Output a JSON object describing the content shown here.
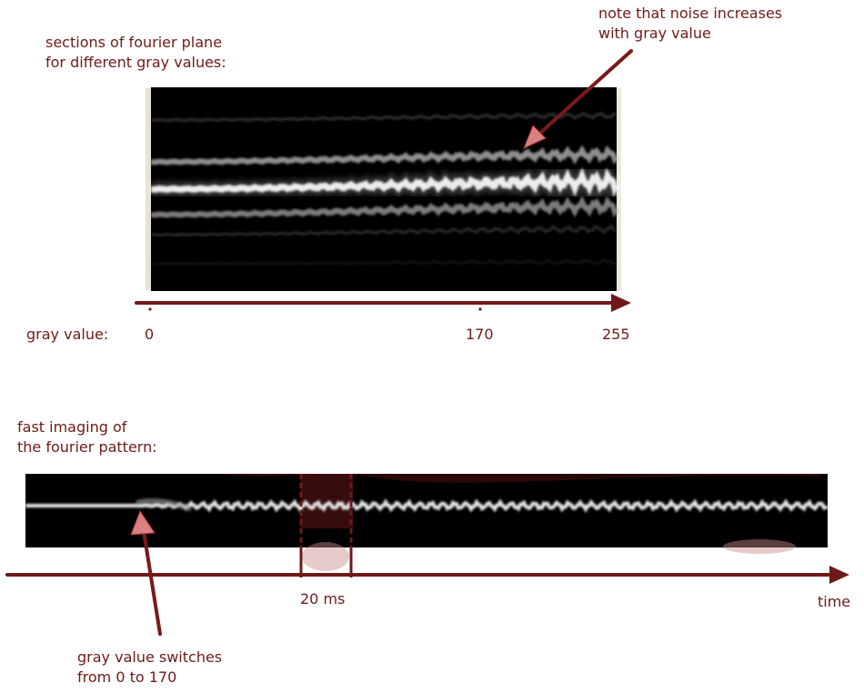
{
  "top_panel": {
    "title_lines": [
      "sections of fourier plane",
      "for different gray values:"
    ],
    "annotation_lines": [
      "note that noise increases",
      "with gray value"
    ],
    "axis_label": "gray value:",
    "ticks": [
      "0",
      "170",
      "255"
    ]
  },
  "bottom_panel": {
    "title_lines": [
      "fast imaging of",
      "the fourier pattern:"
    ],
    "interval_label": "20 ms",
    "axis_label": "time",
    "annotation_lines": [
      "gray value switches",
      "from 0 to 170"
    ]
  },
  "colors": {
    "accent": "#6e1a1a",
    "arrow_fill": "#d98080",
    "highlight": "#c98a8a"
  }
}
